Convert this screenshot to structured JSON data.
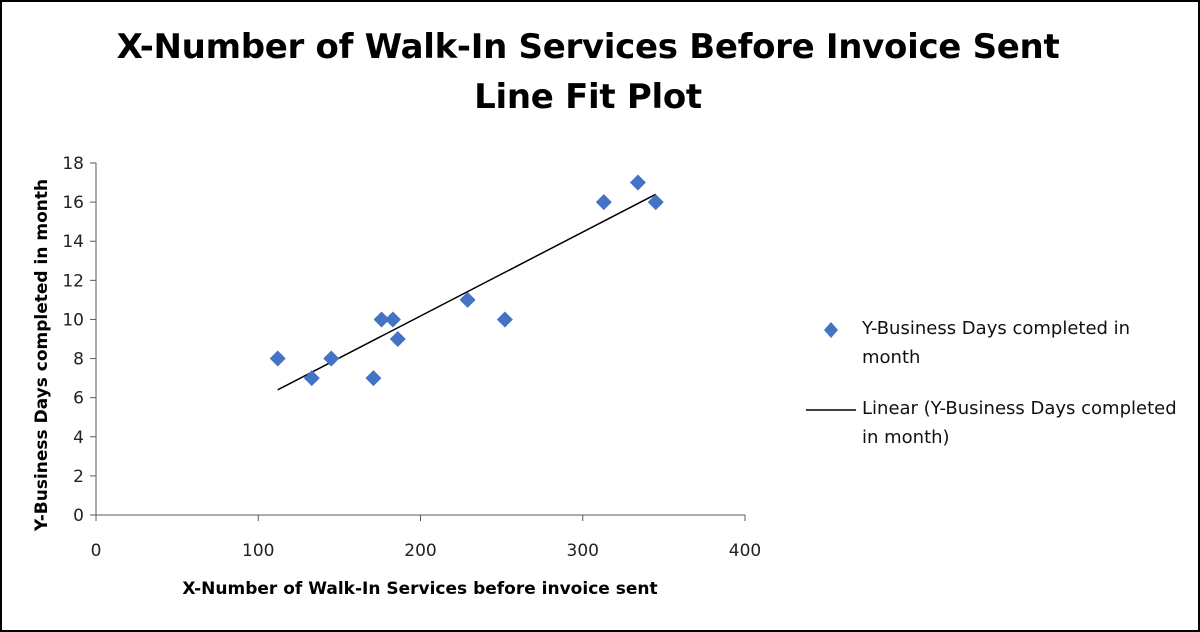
{
  "title": {
    "line1": "X-Number of Walk-In Services Before Invoice Sent",
    "line2": "Line Fit Plot"
  },
  "legend": {
    "series_label": "Y-Business Days completed in month",
    "trend_label": "Linear (Y-Business Days completed in month)"
  },
  "colors": {
    "marker": "#4472C4",
    "trendline": "#000000",
    "axis": "#595959"
  },
  "chart_data": {
    "type": "scatter",
    "title": "X-Number of Walk-In Services Before Invoice Sent Line Fit Plot",
    "xlabel": "X-Number of Walk-In Services before invoice sent",
    "ylabel": "Y-Business Days completed in month",
    "xlim": [
      0,
      400
    ],
    "ylim": [
      0,
      18
    ],
    "x_ticks": [
      0,
      100,
      200,
      300,
      400
    ],
    "y_ticks": [
      0,
      2,
      4,
      6,
      8,
      10,
      12,
      14,
      16,
      18
    ],
    "grid": false,
    "legend_position": "right",
    "series": [
      {
        "name": "Y-Business Days completed in month",
        "marker": "diamond",
        "x": [
          112,
          133,
          145,
          171,
          176,
          183,
          186,
          229,
          252,
          313,
          334,
          345
        ],
        "y": [
          8,
          7,
          8,
          7,
          10,
          10,
          9,
          11,
          10,
          16,
          17,
          16
        ]
      }
    ],
    "trendline": {
      "name": "Linear (Y-Business Days completed in month)",
      "type": "linear",
      "x_range": [
        112,
        345
      ],
      "y_range": [
        6.4,
        16.4
      ]
    }
  }
}
